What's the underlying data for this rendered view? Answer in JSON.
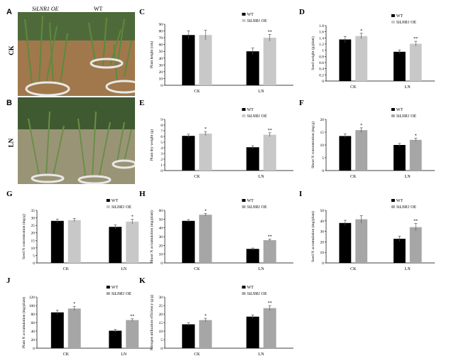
{
  "photos": [
    {
      "label": "A",
      "treatment": "CK",
      "header_left": "SiLNR1 OE",
      "header_right": "WT"
    },
    {
      "label": "B",
      "treatment": "LN"
    }
  ],
  "colors": {
    "WT": "#000000",
    "OE": "#c8c8c8",
    "OE_dark": "#a6a6a6"
  },
  "chart_data": [
    {
      "label": "C",
      "type": "bar",
      "categories": [
        "CK",
        "LN"
      ],
      "ylabel": "Plant height (cm)",
      "ylim": [
        0,
        90
      ],
      "ticks": [
        0,
        10,
        20,
        30,
        40,
        50,
        60,
        70,
        80,
        90
      ],
      "legend": [
        "WT",
        "SiLNR1 OE"
      ],
      "series": [
        {
          "name": "WT",
          "values": [
            74,
            50
          ],
          "err": [
            6,
            5
          ]
        },
        {
          "name": "SiLNR1 OE",
          "values": [
            74,
            70
          ],
          "err": [
            7,
            5
          ]
        }
      ],
      "sig": [
        [
          "",
          ""
        ],
        [
          "",
          "**"
        ]
      ],
      "shade": "light"
    },
    {
      "label": "D",
      "type": "bar",
      "categories": [
        "CK",
        "LN"
      ],
      "ylabel": "Seed weight (g/plant)",
      "ylim": [
        0,
        1.8
      ],
      "ticks": [
        0,
        0.2,
        0.4,
        0.6,
        0.8,
        1,
        1.2,
        1.4,
        1.6,
        1.8
      ],
      "legend": [
        "WT",
        "SiLNR1 OE"
      ],
      "series": [
        {
          "name": "WT",
          "values": [
            1.35,
            0.95
          ],
          "err": [
            0.1,
            0.06
          ]
        },
        {
          "name": "SiLNR1 OE",
          "values": [
            1.46,
            1.21
          ],
          "err": [
            0.09,
            0.08
          ]
        }
      ],
      "sig": [
        [
          "",
          "*"
        ],
        [
          "",
          "**"
        ]
      ],
      "shade": "light"
    },
    {
      "label": "E",
      "type": "bar",
      "categories": [
        "CK",
        "LN"
      ],
      "ylabel": "Plant dry weight (g)",
      "ylim": [
        0,
        9
      ],
      "ticks": [
        0,
        1,
        2,
        3,
        4,
        5,
        6,
        7,
        8,
        9
      ],
      "legend": [
        "WT",
        "SiLNR1 OE"
      ],
      "series": [
        {
          "name": "WT",
          "values": [
            6.1,
            4.1
          ],
          "err": [
            0.3,
            0.25
          ]
        },
        {
          "name": "SiLNR1 OE",
          "values": [
            6.5,
            6.3
          ],
          "err": [
            0.35,
            0.35
          ]
        }
      ],
      "sig": [
        [
          "",
          "*"
        ],
        [
          "",
          "**"
        ]
      ],
      "shade": "light"
    },
    {
      "label": "F",
      "type": "bar",
      "categories": [
        "CK",
        "LN"
      ],
      "ylabel": "Shoot N concentration (mg/g)",
      "ylim": [
        0,
        20
      ],
      "ticks": [
        0,
        5,
        10,
        15,
        20
      ],
      "legend": [
        "WT",
        "SiLNR1 OE"
      ],
      "series": [
        {
          "name": "WT",
          "values": [
            13.5,
            10
          ],
          "err": [
            0.8,
            0.6
          ]
        },
        {
          "name": "SiLNR1 OE",
          "values": [
            15.8,
            12
          ],
          "err": [
            0.9,
            0.7
          ]
        }
      ],
      "sig": [
        [
          "",
          "*"
        ],
        [
          "",
          "*"
        ]
      ],
      "shade": "dark"
    },
    {
      "label": "G",
      "type": "bar",
      "categories": [
        "CK",
        "LN"
      ],
      "ylabel": "Seed N concentration (mg/g)",
      "ylim": [
        0,
        35
      ],
      "ticks": [
        0,
        5,
        10,
        15,
        20,
        25,
        30,
        35
      ],
      "legend": [
        "WT",
        "SiLNR1 OE"
      ],
      "series": [
        {
          "name": "WT",
          "values": [
            28,
            24
          ],
          "err": [
            1.2,
            1.3
          ]
        },
        {
          "name": "SiLNR1 OE",
          "values": [
            28.5,
            27.5
          ],
          "err": [
            1.1,
            1.5
          ]
        }
      ],
      "sig": [
        [
          "",
          ""
        ],
        [
          "",
          "*"
        ]
      ],
      "shade": "light"
    },
    {
      "label": "H",
      "type": "bar",
      "categories": [
        "CK",
        "LN"
      ],
      "ylabel": "Shoot N accumulation (mg/plant)",
      "ylim": [
        0,
        60
      ],
      "ticks": [
        0,
        10,
        20,
        30,
        40,
        50,
        60
      ],
      "legend": [
        "WT",
        "SiLNR1 OE"
      ],
      "series": [
        {
          "name": "WT",
          "values": [
            48,
            16
          ],
          "err": [
            1.5,
            1
          ]
        },
        {
          "name": "SiLNR1 OE",
          "values": [
            55,
            26
          ],
          "err": [
            1.5,
            1.2
          ]
        }
      ],
      "sig": [
        [
          "",
          "*"
        ],
        [
          "",
          "**"
        ]
      ],
      "shade": "dark"
    },
    {
      "label": "I",
      "type": "bar",
      "categories": [
        "CK",
        "LN"
      ],
      "ylabel": "Seed N accumulation (mg/plant)",
      "ylim": [
        0,
        50
      ],
      "ticks": [
        0,
        10,
        20,
        30,
        40,
        50
      ],
      "legend": [
        "WT",
        "SiLNR1 OE"
      ],
      "series": [
        {
          "name": "WT",
          "values": [
            38,
            23
          ],
          "err": [
            2.5,
            2.5
          ]
        },
        {
          "name": "SiLNR1 OE",
          "values": [
            41.5,
            34
          ],
          "err": [
            3.5,
            3.5
          ]
        }
      ],
      "sig": [
        [
          "",
          ""
        ],
        [
          "",
          "**"
        ]
      ],
      "shade": "dark"
    },
    {
      "label": "J",
      "type": "bar",
      "categories": [
        "CK",
        "LN"
      ],
      "ylabel": "Plant N accumulation (mg/plant)",
      "ylim": [
        0,
        120
      ],
      "ticks": [
        0,
        20,
        40,
        60,
        80,
        100,
        120
      ],
      "legend": [
        "WT",
        "SiLNR1 OE"
      ],
      "series": [
        {
          "name": "WT",
          "values": [
            84,
            41
          ],
          "err": [
            5,
            3
          ]
        },
        {
          "name": "SiLNR1 OE",
          "values": [
            93,
            66
          ],
          "err": [
            5,
            3
          ]
        }
      ],
      "sig": [
        [
          "",
          "*"
        ],
        [
          "",
          "**"
        ]
      ],
      "shade": "dark"
    },
    {
      "label": "K",
      "type": "bar",
      "categories": [
        "CK",
        "LN"
      ],
      "ylabel": "Nitrogen utilization efficiency (g/g)",
      "ylim": [
        0,
        30
      ],
      "ticks": [
        0,
        5,
        10,
        15,
        20,
        25,
        30
      ],
      "legend": [
        "WT",
        "SiLNR1 OE"
      ],
      "series": [
        {
          "name": "WT",
          "values": [
            14,
            18.5
          ],
          "err": [
            1,
            1
          ]
        },
        {
          "name": "SiLNR1 OE",
          "values": [
            16.5,
            23.5
          ],
          "err": [
            1,
            1.5
          ]
        }
      ],
      "sig": [
        [
          "",
          "*"
        ],
        [
          "",
          "**"
        ]
      ],
      "shade": "dark"
    }
  ]
}
